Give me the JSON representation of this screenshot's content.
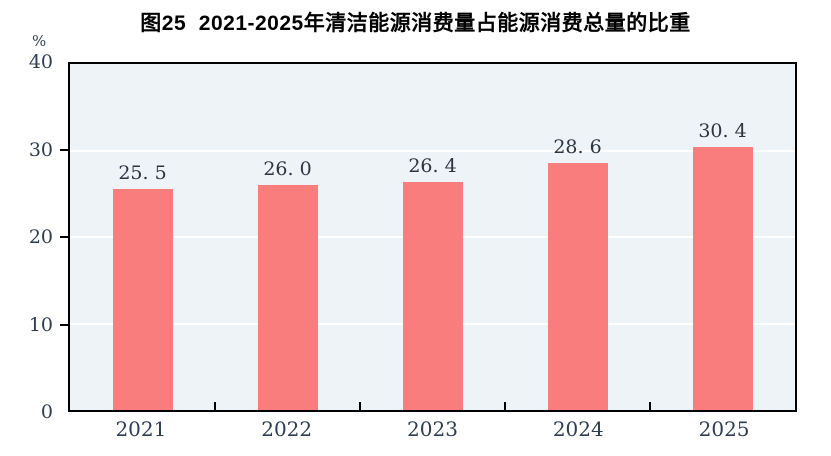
{
  "figure": {
    "title": "图25  2021-2025年清洁能源消费量占能源消费总量的比重",
    "y_unit_label": "%"
  },
  "chart_data": {
    "type": "bar",
    "title": "图25  2021-2025年清洁能源消费量占能源消费总量的比重",
    "categories": [
      "2021",
      "2022",
      "2023",
      "2024",
      "2025"
    ],
    "values": [
      25.5,
      26.0,
      26.4,
      28.6,
      30.4
    ],
    "value_labels": [
      "25. 5",
      "26. 0",
      "26. 4",
      "28. 6",
      "30. 4"
    ],
    "xlabel": "",
    "ylabel": "%",
    "ylim": [
      0,
      40
    ],
    "yticks": [
      0,
      10,
      20,
      30,
      40
    ],
    "grid": "horizontal gridlines at 10, 20, 30",
    "legend_position": "none",
    "colors": {
      "bar": "#FA7D7D",
      "plot_background": "#EDF3F7",
      "gridline": "#FFFFFF",
      "axis": "#000000",
      "tick_label": "#2E3D52",
      "value_label": "#2B3440",
      "title": "#000000",
      "page_background": "#FFFFFF"
    }
  }
}
